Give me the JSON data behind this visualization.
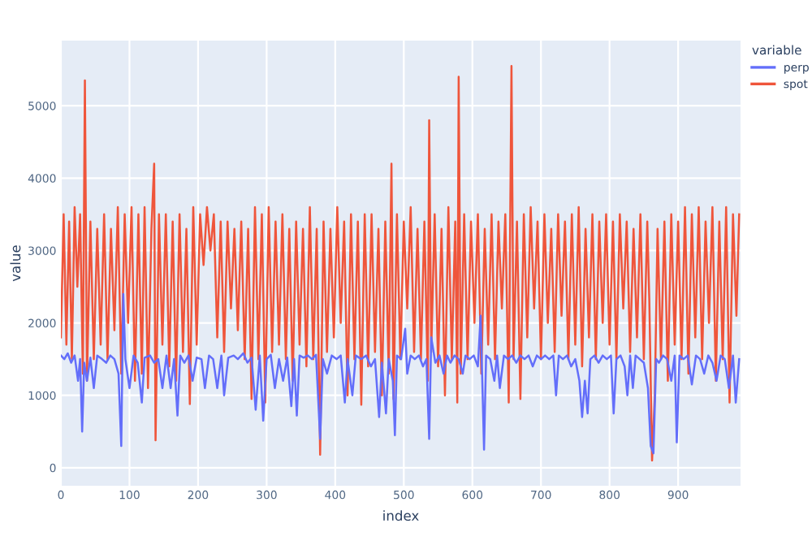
{
  "chart_data": {
    "type": "line",
    "xlabel": "index",
    "ylabel": "value",
    "legend_title": "variable",
    "legend": "top right",
    "grid": true,
    "marker": "none",
    "line_style": "solid",
    "xlim": [
      0,
      991
    ],
    "ylim": [
      -250,
      5900
    ],
    "xticks": [
      0,
      100,
      200,
      300,
      400,
      500,
      600,
      700,
      800,
      900
    ],
    "yticks": [
      0,
      1000,
      2000,
      3000,
      4000,
      5000
    ],
    "series": [
      {
        "name": "perp",
        "color": "#636efa",
        "x": [
          0,
          5,
          10,
          15,
          20,
          25,
          28,
          31,
          34,
          38,
          43,
          48,
          53,
          60,
          66,
          72,
          78,
          84,
          88,
          91,
          94,
          100,
          106,
          112,
          118,
          122,
          130,
          136,
          142,
          148,
          154,
          160,
          165,
          170,
          174,
          180,
          186,
          192,
          198,
          205,
          210,
          216,
          222,
          228,
          234,
          238,
          244,
          252,
          258,
          266,
          272,
          278,
          284,
          290,
          295,
          300,
          306,
          312,
          318,
          324,
          330,
          336,
          340,
          344,
          348,
          354,
          360,
          366,
          372,
          378,
          382,
          388,
          395,
          402,
          408,
          414,
          418,
          425,
          430,
          438,
          445,
          452,
          458,
          464,
          468,
          474,
          478,
          484,
          487,
          490,
          496,
          502,
          505,
          510,
          516,
          522,
          528,
          533,
          537,
          540,
          546,
          552,
          558,
          563,
          568,
          574,
          580,
          586,
          590,
          596,
          602,
          608,
          612,
          617,
          620,
          626,
          632,
          636,
          640,
          646,
          652,
          658,
          664,
          670,
          676,
          682,
          688,
          694,
          700,
          706,
          712,
          718,
          722,
          726,
          732,
          738,
          744,
          750,
          756,
          760,
          764,
          768,
          772,
          778,
          784,
          790,
          796,
          802,
          806,
          810,
          816,
          822,
          826,
          830,
          834,
          838,
          844,
          850,
          856,
          860,
          864,
          868,
          872,
          878,
          884,
          890,
          895,
          898,
          902,
          908,
          914,
          920,
          926,
          932,
          938,
          944,
          950,
          956,
          962,
          968,
          974,
          980,
          984,
          989
        ],
        "values": [
          1550,
          1500,
          1580,
          1450,
          1550,
          1200,
          1500,
          500,
          1450,
          1200,
          1520,
          1100,
          1550,
          1500,
          1450,
          1550,
          1500,
          1300,
          300,
          2400,
          1500,
          1100,
          1550,
          1450,
          900,
          1520,
          1550,
          1450,
          1500,
          1100,
          1550,
          1100,
          1500,
          720,
          1550,
          1450,
          1550,
          1200,
          1520,
          1500,
          1100,
          1550,
          1500,
          1100,
          1550,
          1000,
          1520,
          1550,
          1500,
          1580,
          1450,
          1520,
          800,
          1550,
          650,
          1500,
          1560,
          1100,
          1500,
          1200,
          1520,
          850,
          1500,
          720,
          1550,
          1520,
          1550,
          1500,
          1560,
          400,
          1500,
          1300,
          1550,
          1500,
          1550,
          900,
          1500,
          1000,
          1550,
          1500,
          1550,
          1400,
          1500,
          700,
          1450,
          750,
          1500,
          1200,
          450,
          1550,
          1500,
          1920,
          1300,
          1550,
          1500,
          1550,
          1400,
          1500,
          400,
          1800,
          1450,
          1550,
          1300,
          1550,
          1450,
          1550,
          1500,
          1300,
          1550,
          1500,
          1550,
          1400,
          2100,
          250,
          1550,
          1500,
          1200,
          1550,
          1100,
          1550,
          1500,
          1550,
          1450,
          1550,
          1500,
          1550,
          1400,
          1550,
          1500,
          1550,
          1500,
          1550,
          1000,
          1550,
          1500,
          1550,
          1400,
          1500,
          1200,
          700,
          1200,
          750,
          1500,
          1550,
          1450,
          1550,
          1500,
          1550,
          750,
          1500,
          1550,
          1400,
          1000,
          1550,
          1100,
          1550,
          1500,
          1450,
          1100,
          300,
          200,
          1500,
          1450,
          1550,
          1500,
          1200,
          1550,
          350,
          1550,
          1500,
          1550,
          1150,
          1550,
          1500,
          1300,
          1550,
          1450,
          1200,
          1550,
          1500,
          1100,
          1550,
          900,
          1500
        ]
      },
      {
        "name": "spot",
        "color": "#ef553b",
        "x": [
          0,
          4,
          8,
          12,
          16,
          20,
          24,
          28,
          32,
          35,
          38,
          43,
          48,
          53,
          58,
          63,
          68,
          73,
          78,
          83,
          88,
          93,
          98,
          103,
          108,
          113,
          118,
          122,
          127,
          132,
          136,
          138,
          143,
          148,
          153,
          158,
          163,
          168,
          173,
          178,
          183,
          188,
          193,
          198,
          203,
          208,
          213,
          218,
          223,
          228,
          233,
          238,
          243,
          248,
          253,
          258,
          263,
          268,
          273,
          278,
          283,
          288,
          293,
          298,
          303,
          308,
          313,
          318,
          323,
          328,
          333,
          338,
          343,
          348,
          353,
          358,
          363,
          368,
          373,
          378,
          383,
          388,
          393,
          398,
          403,
          408,
          413,
          418,
          423,
          428,
          433,
          438,
          443,
          448,
          453,
          458,
          463,
          468,
          473,
          478,
          482,
          485,
          490,
          495,
          500,
          505,
          510,
          515,
          520,
          525,
          530,
          535,
          537,
          540,
          545,
          550,
          555,
          560,
          565,
          570,
          575,
          578,
          580,
          583,
          588,
          593,
          598,
          603,
          608,
          613,
          618,
          623,
          628,
          633,
          638,
          643,
          648,
          653,
          657,
          660,
          665,
          670,
          675,
          680,
          685,
          690,
          695,
          700,
          705,
          710,
          715,
          720,
          725,
          730,
          735,
          740,
          745,
          750,
          755,
          760,
          765,
          770,
          775,
          780,
          785,
          790,
          795,
          800,
          805,
          810,
          815,
          820,
          825,
          830,
          835,
          840,
          845,
          850,
          855,
          858,
          862,
          866,
          870,
          875,
          880,
          885,
          890,
          895,
          900,
          905,
          910,
          915,
          920,
          925,
          930,
          935,
          940,
          945,
          950,
          955,
          960,
          965,
          970,
          975,
          980,
          985,
          989
        ],
        "values": [
          1800,
          3500,
          1700,
          3400,
          1500,
          3600,
          2500,
          3500,
          1300,
          5350,
          1200,
          3400,
          1500,
          3300,
          1700,
          3500,
          1500,
          3300,
          1900,
          3600,
          1300,
          3500,
          2000,
          3600,
          1200,
          3500,
          1300,
          3600,
          1100,
          3300,
          4200,
          380,
          3500,
          1700,
          3500,
          1400,
          3400,
          1200,
          3500,
          1600,
          3300,
          880,
          3600,
          1700,
          3500,
          2800,
          3600,
          3000,
          3500,
          1800,
          3400,
          1600,
          3400,
          2200,
          3300,
          1900,
          3400,
          1500,
          3300,
          950,
          3600,
          1500,
          3500,
          900,
          3600,
          1600,
          3400,
          1700,
          3500,
          1500,
          3300,
          1200,
          3400,
          1700,
          3300,
          1400,
          3600,
          1500,
          3300,
          180,
          3400,
          1600,
          3300,
          1800,
          3600,
          2000,
          3400,
          1000,
          3500,
          1500,
          3400,
          870,
          3500,
          1400,
          3500,
          1600,
          3300,
          1000,
          3400,
          1300,
          4200,
          950,
          3500,
          1500,
          3400,
          2200,
          3600,
          1600,
          3300,
          1500,
          3400,
          1200,
          4800,
          1600,
          3500,
          1400,
          3300,
          1000,
          3600,
          1500,
          3400,
          900,
          5400,
          1300,
          3500,
          1500,
          3400,
          2000,
          3500,
          1300,
          3300,
          1700,
          3500,
          1500,
          3400,
          2200,
          3500,
          900,
          5550,
          1500,
          3400,
          950,
          3500,
          1800,
          3600,
          2200,
          3400,
          1500,
          3500,
          2000,
          3300,
          1600,
          3500,
          2100,
          3400,
          1500,
          3500,
          1700,
          3600,
          1400,
          3300,
          1800,
          3500,
          1500,
          3400,
          2000,
          3500,
          1700,
          3400,
          1500,
          3500,
          2200,
          3400,
          1600,
          3300,
          1800,
          3500,
          1500,
          3400,
          2300,
          100,
          1000,
          3300,
          1500,
          3400,
          1200,
          3500,
          1700,
          3400,
          1500,
          3600,
          1300,
          3500,
          1800,
          3600,
          1500,
          3400,
          2000,
          3600,
          1200,
          3400,
          1500,
          3600,
          900,
          3500,
          2100,
          3500
        ]
      }
    ]
  }
}
